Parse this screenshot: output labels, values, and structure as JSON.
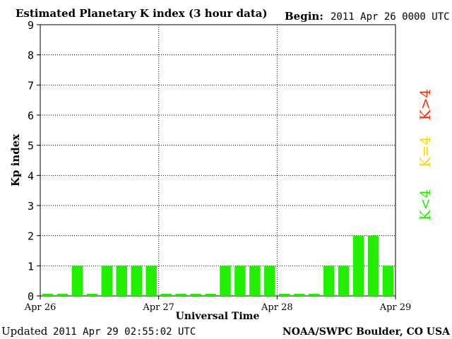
{
  "chart_data": {
    "type": "bar",
    "title": "Estimated Planetary K index (3 hour data)",
    "begin_label": "Begin:",
    "begin_value": "2011 Apr 26 0000 UTC",
    "ylabel": "Kp index",
    "xlabel": "Universal Time",
    "ylim": [
      0,
      9
    ],
    "yticks": [
      "0",
      "1",
      "2",
      "3",
      "4",
      "5",
      "6",
      "7",
      "8",
      "9"
    ],
    "x_day_labels": [
      "Apr 26",
      "Apr 27",
      "Apr 28",
      "Apr 29"
    ],
    "values": [
      0,
      0,
      1,
      0,
      1,
      1,
      1,
      1,
      0,
      0,
      0,
      0,
      1,
      1,
      1,
      1,
      0,
      0,
      0,
      1,
      1,
      2,
      2,
      1
    ],
    "grid": true,
    "legend_placement": "right",
    "legend": [
      {
        "label": "K>4",
        "color": "#ff2a00"
      },
      {
        "label": "K=4",
        "color": "#ffd700"
      },
      {
        "label": "K<4",
        "color": "#22ee00"
      }
    ],
    "bar_color": "#22ee00"
  },
  "footer": {
    "updated_label": "Updated",
    "updated_value": "2011 Apr 29 02:55:02 UTC",
    "credit": "NOAA/SWPC Boulder, CO USA"
  }
}
